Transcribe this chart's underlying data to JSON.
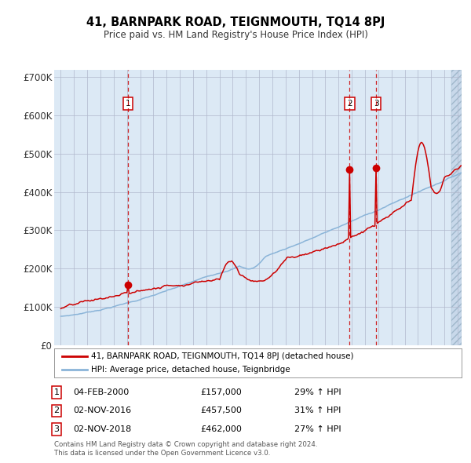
{
  "title": "41, BARNPARK ROAD, TEIGNMOUTH, TQ14 8PJ",
  "subtitle": "Price paid vs. HM Land Registry's House Price Index (HPI)",
  "legend_line1": "41, BARNPARK ROAD, TEIGNMOUTH, TQ14 8PJ (detached house)",
  "legend_line2": "HPI: Average price, detached house, Teignbridge",
  "sale_points": [
    {
      "label": "1",
      "date_float": 2000.083,
      "price": 157000
    },
    {
      "label": "2",
      "date_float": 2016.833,
      "price": 457500
    },
    {
      "label": "3",
      "date_float": 2018.833,
      "price": 462000
    }
  ],
  "table_rows": [
    [
      "1",
      "04-FEB-2000",
      "£157,000",
      "29% ↑ HPI"
    ],
    [
      "2",
      "02-NOV-2016",
      "£457,500",
      "31% ↑ HPI"
    ],
    [
      "3",
      "02-NOV-2018",
      "£462,000",
      "27% ↑ HPI"
    ]
  ],
  "footer": "Contains HM Land Registry data © Crown copyright and database right 2024.\nThis data is licensed under the Open Government Licence v3.0.",
  "hpi_line_color": "#8ab4d8",
  "price_line_color": "#cc0000",
  "sale_marker_color": "#cc0000",
  "dashed_line_color": "#cc0000",
  "plot_bg_color": "#dce9f5",
  "grid_color": "#b0b8cc",
  "ylim": [
    0,
    720000
  ],
  "yticks": [
    0,
    100000,
    200000,
    300000,
    400000,
    500000,
    600000,
    700000
  ],
  "ytick_labels": [
    "£0",
    "£100K",
    "£200K",
    "£300K",
    "£400K",
    "£500K",
    "£600K",
    "£700K"
  ],
  "xstart_year": 1995,
  "xend_year": 2025
}
